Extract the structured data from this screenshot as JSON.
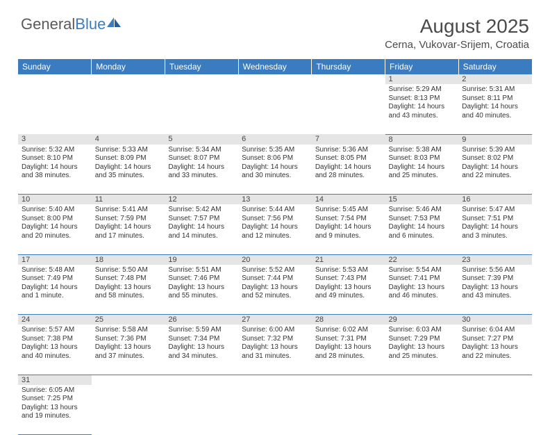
{
  "brand": {
    "part1": "General",
    "part2": "Blue"
  },
  "title": {
    "month": "August 2025",
    "location": "Cerna, Vukovar-Srijem, Croatia"
  },
  "colors": {
    "header_bg": "#3b7bbf",
    "header_text": "#ffffff",
    "daynum_bg": "#e5e5e5",
    "cell_border": "#3b7bbf",
    "body_text": "#333333",
    "title_text": "#4a4a4a",
    "logo_gray": "#5a5a5a",
    "logo_blue": "#3b7bbf",
    "background": "#ffffff"
  },
  "typography": {
    "month_fontsize": 28,
    "location_fontsize": 15,
    "dayheader_fontsize": 12,
    "daynum_fontsize": 11,
    "cell_fontsize": 10
  },
  "dayHeaders": [
    "Sunday",
    "Monday",
    "Tuesday",
    "Wednesday",
    "Thursday",
    "Friday",
    "Saturday"
  ],
  "weeks": [
    [
      null,
      null,
      null,
      null,
      null,
      {
        "n": "1",
        "sunrise": "5:29 AM",
        "sunset": "8:13 PM",
        "dayH": "14",
        "dayM": "43"
      },
      {
        "n": "2",
        "sunrise": "5:31 AM",
        "sunset": "8:11 PM",
        "dayH": "14",
        "dayM": "40"
      }
    ],
    [
      {
        "n": "3",
        "sunrise": "5:32 AM",
        "sunset": "8:10 PM",
        "dayH": "14",
        "dayM": "38"
      },
      {
        "n": "4",
        "sunrise": "5:33 AM",
        "sunset": "8:09 PM",
        "dayH": "14",
        "dayM": "35"
      },
      {
        "n": "5",
        "sunrise": "5:34 AM",
        "sunset": "8:07 PM",
        "dayH": "14",
        "dayM": "33"
      },
      {
        "n": "6",
        "sunrise": "5:35 AM",
        "sunset": "8:06 PM",
        "dayH": "14",
        "dayM": "30"
      },
      {
        "n": "7",
        "sunrise": "5:36 AM",
        "sunset": "8:05 PM",
        "dayH": "14",
        "dayM": "28"
      },
      {
        "n": "8",
        "sunrise": "5:38 AM",
        "sunset": "8:03 PM",
        "dayH": "14",
        "dayM": "25"
      },
      {
        "n": "9",
        "sunrise": "5:39 AM",
        "sunset": "8:02 PM",
        "dayH": "14",
        "dayM": "22"
      }
    ],
    [
      {
        "n": "10",
        "sunrise": "5:40 AM",
        "sunset": "8:00 PM",
        "dayH": "14",
        "dayM": "20"
      },
      {
        "n": "11",
        "sunrise": "5:41 AM",
        "sunset": "7:59 PM",
        "dayH": "14",
        "dayM": "17"
      },
      {
        "n": "12",
        "sunrise": "5:42 AM",
        "sunset": "7:57 PM",
        "dayH": "14",
        "dayM": "14"
      },
      {
        "n": "13",
        "sunrise": "5:44 AM",
        "sunset": "7:56 PM",
        "dayH": "14",
        "dayM": "12"
      },
      {
        "n": "14",
        "sunrise": "5:45 AM",
        "sunset": "7:54 PM",
        "dayH": "14",
        "dayM": "9"
      },
      {
        "n": "15",
        "sunrise": "5:46 AM",
        "sunset": "7:53 PM",
        "dayH": "14",
        "dayM": "6"
      },
      {
        "n": "16",
        "sunrise": "5:47 AM",
        "sunset": "7:51 PM",
        "dayH": "14",
        "dayM": "3"
      }
    ],
    [
      {
        "n": "17",
        "sunrise": "5:48 AM",
        "sunset": "7:49 PM",
        "dayH": "14",
        "dayM": "1"
      },
      {
        "n": "18",
        "sunrise": "5:50 AM",
        "sunset": "7:48 PM",
        "dayH": "13",
        "dayM": "58"
      },
      {
        "n": "19",
        "sunrise": "5:51 AM",
        "sunset": "7:46 PM",
        "dayH": "13",
        "dayM": "55"
      },
      {
        "n": "20",
        "sunrise": "5:52 AM",
        "sunset": "7:44 PM",
        "dayH": "13",
        "dayM": "52"
      },
      {
        "n": "21",
        "sunrise": "5:53 AM",
        "sunset": "7:43 PM",
        "dayH": "13",
        "dayM": "49"
      },
      {
        "n": "22",
        "sunrise": "5:54 AM",
        "sunset": "7:41 PM",
        "dayH": "13",
        "dayM": "46"
      },
      {
        "n": "23",
        "sunrise": "5:56 AM",
        "sunset": "7:39 PM",
        "dayH": "13",
        "dayM": "43"
      }
    ],
    [
      {
        "n": "24",
        "sunrise": "5:57 AM",
        "sunset": "7:38 PM",
        "dayH": "13",
        "dayM": "40"
      },
      {
        "n": "25",
        "sunrise": "5:58 AM",
        "sunset": "7:36 PM",
        "dayH": "13",
        "dayM": "37"
      },
      {
        "n": "26",
        "sunrise": "5:59 AM",
        "sunset": "7:34 PM",
        "dayH": "13",
        "dayM": "34"
      },
      {
        "n": "27",
        "sunrise": "6:00 AM",
        "sunset": "7:32 PM",
        "dayH": "13",
        "dayM": "31"
      },
      {
        "n": "28",
        "sunrise": "6:02 AM",
        "sunset": "7:31 PM",
        "dayH": "13",
        "dayM": "28"
      },
      {
        "n": "29",
        "sunrise": "6:03 AM",
        "sunset": "7:29 PM",
        "dayH": "13",
        "dayM": "25"
      },
      {
        "n": "30",
        "sunrise": "6:04 AM",
        "sunset": "7:27 PM",
        "dayH": "13",
        "dayM": "22"
      }
    ],
    [
      {
        "n": "31",
        "sunrise": "6:05 AM",
        "sunset": "7:25 PM",
        "dayH": "13",
        "dayM": "19"
      },
      null,
      null,
      null,
      null,
      null,
      null
    ]
  ],
  "labels": {
    "sunrise": "Sunrise:",
    "sunset": "Sunset:",
    "daylight": "Daylight:",
    "hours": "hours",
    "and": "and",
    "minute": "minute",
    "minutes": "minutes"
  }
}
